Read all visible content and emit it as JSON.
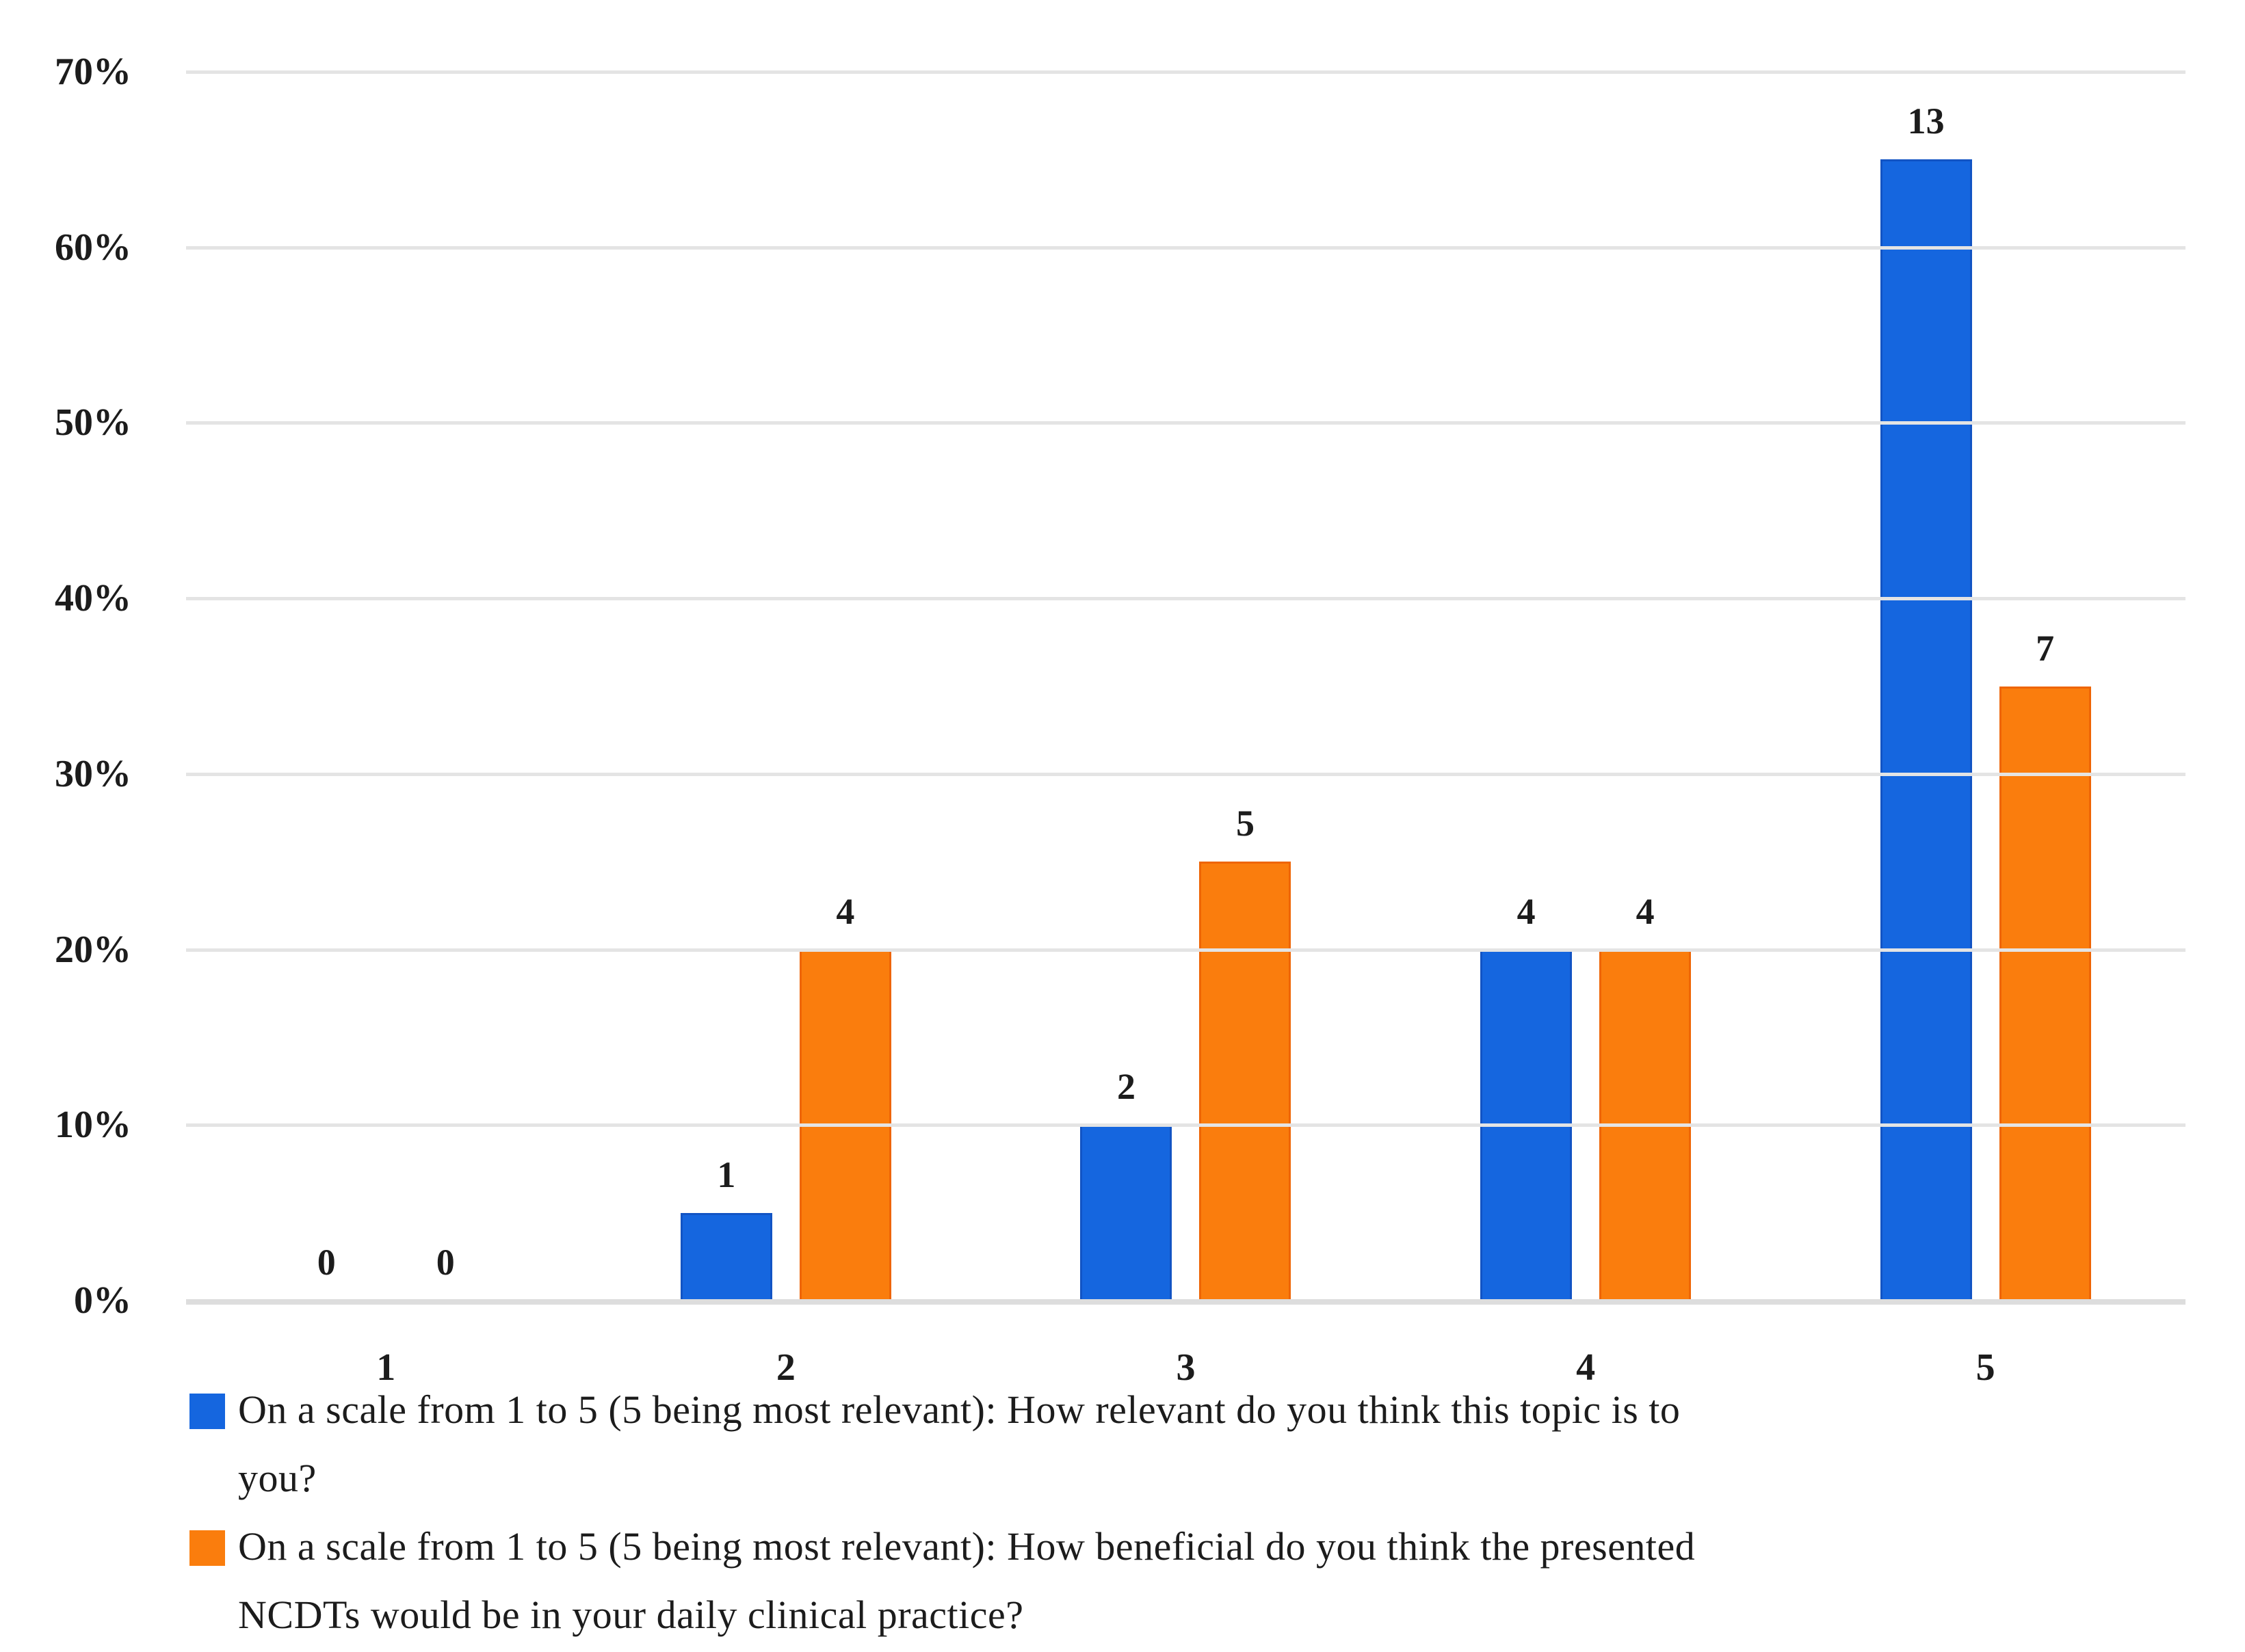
{
  "figure": {
    "background_color": "#ffffff",
    "text_color": "#1c1c1c",
    "gridline_color": "#e4e4e4"
  },
  "chart_data": {
    "type": "bar",
    "title": "",
    "categories": [
      "1",
      "2",
      "3",
      "4",
      "5"
    ],
    "y_axis": {
      "unit": "%",
      "min": 0,
      "max": 70,
      "tick_step": 10,
      "ticks": [
        "0%",
        "10%",
        "20%",
        "30%",
        "40%",
        "50%",
        "60%",
        "70%"
      ]
    },
    "grid": true,
    "legend_position": "bottom",
    "series": [
      {
        "name": "On a scale from 1 to 5 (5 being most relevant): How relevant do you think this topic is to you?",
        "legend_lines": [
          "On a scale from 1 to 5 (5 being most relevant): How relevant do you think this topic is to",
          "you?"
        ],
        "color": "#1566df",
        "border_color": "#1254c4",
        "counts": [
          0,
          1,
          2,
          4,
          13
        ],
        "percent_values": [
          0,
          5,
          10,
          20,
          65
        ]
      },
      {
        "name": "On a scale from 1 to 5 (5 being most relevant): How beneficial do you think the presented NCDTs would be in your daily clinical practice?",
        "legend_lines": [
          "On a scale from 1 to 5 (5 being most relevant): How beneficial do you think the presented",
          "NCDTs would be in your daily clinical practice?"
        ],
        "color": "#fa7d0d",
        "border_color": "#ee6505",
        "counts": [
          0,
          4,
          5,
          4,
          7
        ],
        "percent_values": [
          0,
          20,
          25,
          20,
          35
        ]
      }
    ]
  }
}
